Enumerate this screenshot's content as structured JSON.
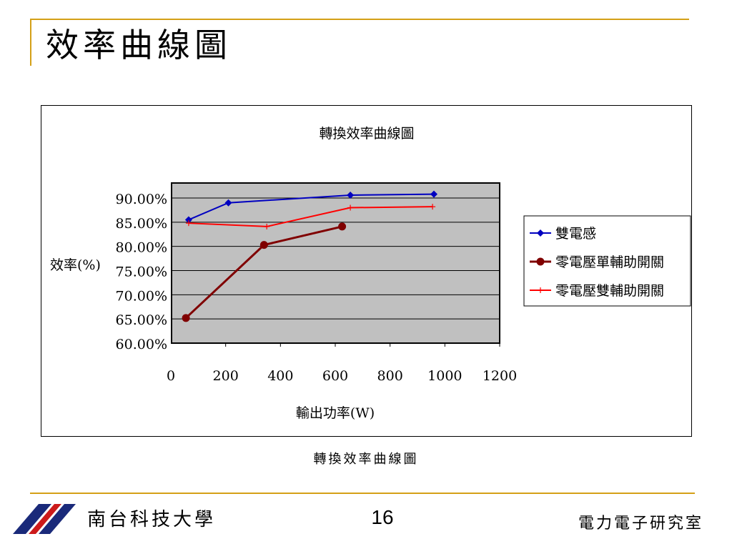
{
  "slide": {
    "title": "效率曲線圖",
    "caption": "轉換效率曲線圖",
    "school": "南台科技大學",
    "page_number": "16",
    "lab": "電力電子研究室"
  },
  "colors": {
    "accent": "#d4a017",
    "plot_bg": "#c0c0c0",
    "series1": "#0000c0",
    "series2": "#800000",
    "series3": "#ff0000"
  },
  "chart_data": {
    "type": "line",
    "title": "轉換效率曲線圖",
    "xlabel": "輸出功率(W)",
    "ylabel": "效率(%)",
    "xlim": [
      0,
      1200
    ],
    "ylim": [
      0.6,
      0.9
    ],
    "x_ticks": [
      "0",
      "200",
      "400",
      "600",
      "800",
      "1000",
      "1200"
    ],
    "y_ticks": [
      "90.00%",
      "85.00%",
      "80.00%",
      "75.00%",
      "70.00%",
      "65.00%",
      "60.00%"
    ],
    "grid": true,
    "legend_position": "right",
    "series": [
      {
        "name": "雙電感",
        "marker": "diamond",
        "color": "#0000c0",
        "x": [
          65,
          210,
          655,
          960
        ],
        "y": [
          0.855,
          0.89,
          0.906,
          0.908
        ]
      },
      {
        "name": "零電壓單輔助開關",
        "marker": "circle",
        "color": "#800000",
        "x": [
          55,
          340,
          625
        ],
        "y": [
          0.652,
          0.803,
          0.841
        ]
      },
      {
        "name": "零電壓雙輔助開關",
        "marker": "plus",
        "color": "#ff0000",
        "x": [
          65,
          350,
          655,
          955
        ],
        "y": [
          0.848,
          0.841,
          0.88,
          0.882
        ]
      }
    ]
  }
}
